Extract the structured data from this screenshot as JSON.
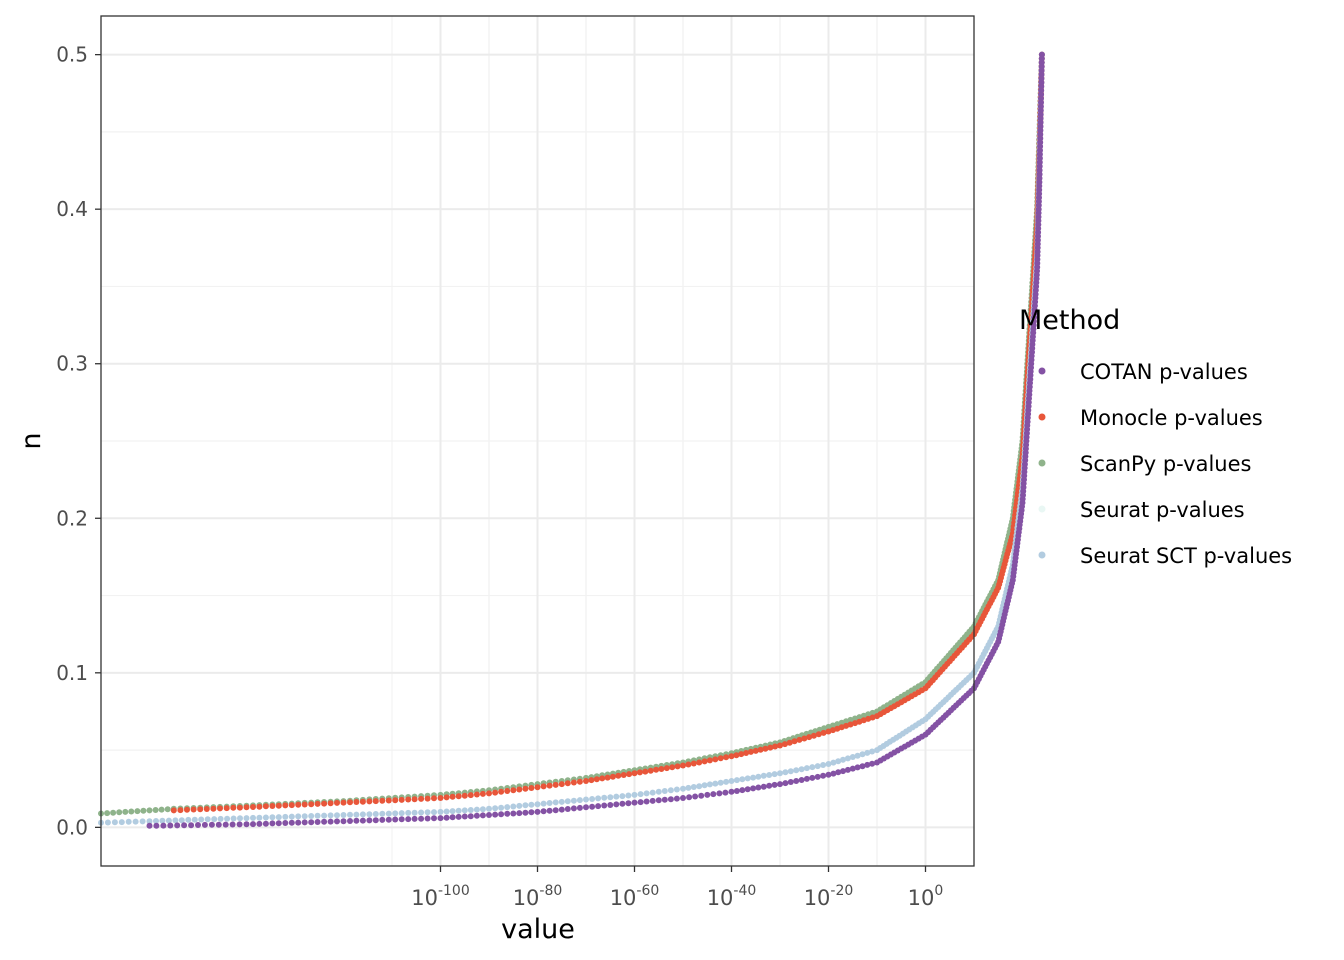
{
  "chart_data": {
    "type": "scatter",
    "xlabel": "value",
    "ylabel": "n",
    "x_scale": "log10",
    "xlim": [
      "1e-170",
      "1e10"
    ],
    "ylim": [
      -0.025,
      0.525
    ],
    "y_ticks": [
      "0.0",
      "0.1",
      "0.2",
      "0.3",
      "0.4",
      "0.5"
    ],
    "x_ticks": [
      {
        "exponent": -100,
        "base": "10",
        "power": "-100"
      },
      {
        "exponent": -80,
        "base": "10",
        "power": "-80"
      },
      {
        "exponent": -60,
        "base": "10",
        "power": "-60"
      },
      {
        "exponent": -40,
        "base": "10",
        "power": "-40"
      },
      {
        "exponent": -20,
        "base": "10",
        "power": "-20"
      },
      {
        "exponent": 0,
        "base": "10",
        "power": "0"
      }
    ],
    "grid": true,
    "legend": {
      "title": "Method",
      "position": "right",
      "entries": [
        {
          "name": "COTAN p-values",
          "color": "#8452a4"
        },
        {
          "name": "Monocle p-values",
          "color": "#e8563a"
        },
        {
          "name": "ScanPy p-values",
          "color": "#8fb38b"
        },
        {
          "name": "Seurat p-values",
          "color": "#e9f7f4"
        },
        {
          "name": "Seurat SCT p-values",
          "color": "#b2cce0"
        }
      ]
    },
    "series": [
      {
        "name": "ScanPy p-values",
        "color": "#8fb38b",
        "points_log10x_y": [
          [
            -170,
            0.009
          ],
          [
            -155,
            0.012
          ],
          [
            -140,
            0.014
          ],
          [
            -120,
            0.017
          ],
          [
            -100,
            0.021
          ],
          [
            -90,
            0.024
          ],
          [
            -80,
            0.028
          ],
          [
            -70,
            0.032
          ],
          [
            -60,
            0.037
          ],
          [
            -50,
            0.042
          ],
          [
            -40,
            0.048
          ],
          [
            -30,
            0.055
          ],
          [
            -20,
            0.065
          ],
          [
            -10,
            0.075
          ],
          [
            0,
            0.094
          ],
          [
            10,
            0.13
          ],
          [
            15,
            0.16
          ],
          [
            18,
            0.2
          ],
          [
            20,
            0.25
          ],
          [
            21,
            0.3
          ],
          [
            22,
            0.35
          ],
          [
            23,
            0.4
          ],
          [
            23.5,
            0.45
          ],
          [
            24,
            0.5
          ]
        ]
      },
      {
        "name": "Monocle p-values",
        "color": "#e8563a",
        "points_log10x_y": [
          [
            -155,
            0.011
          ],
          [
            -140,
            0.013
          ],
          [
            -120,
            0.016
          ],
          [
            -100,
            0.019
          ],
          [
            -90,
            0.022
          ],
          [
            -80,
            0.026
          ],
          [
            -70,
            0.03
          ],
          [
            -60,
            0.035
          ],
          [
            -50,
            0.04
          ],
          [
            -40,
            0.046
          ],
          [
            -30,
            0.053
          ],
          [
            -20,
            0.062
          ],
          [
            -10,
            0.072
          ],
          [
            0,
            0.09
          ],
          [
            10,
            0.125
          ],
          [
            15,
            0.155
          ],
          [
            18,
            0.19
          ],
          [
            20,
            0.24
          ],
          [
            21,
            0.29
          ],
          [
            22,
            0.34
          ],
          [
            23,
            0.39
          ],
          [
            23.5,
            0.44
          ],
          [
            24,
            0.5
          ]
        ]
      },
      {
        "name": "Seurat SCT p-values",
        "color": "#b2cce0",
        "points_log10x_y": [
          [
            -170,
            0.003
          ],
          [
            -160,
            0.004
          ],
          [
            -140,
            0.006
          ],
          [
            -120,
            0.008
          ],
          [
            -100,
            0.01
          ],
          [
            -90,
            0.012
          ],
          [
            -80,
            0.015
          ],
          [
            -70,
            0.018
          ],
          [
            -60,
            0.021
          ],
          [
            -50,
            0.025
          ],
          [
            -40,
            0.03
          ],
          [
            -30,
            0.035
          ],
          [
            -20,
            0.041
          ],
          [
            -10,
            0.05
          ],
          [
            0,
            0.07
          ],
          [
            10,
            0.1
          ],
          [
            15,
            0.13
          ],
          [
            18,
            0.17
          ],
          [
            20,
            0.22
          ],
          [
            21,
            0.27
          ],
          [
            22,
            0.32
          ],
          [
            23,
            0.37
          ],
          [
            23.5,
            0.43
          ],
          [
            24,
            0.5
          ]
        ]
      },
      {
        "name": "COTAN p-values",
        "color": "#8452a4",
        "points_log10x_y": [
          [
            -160,
            0.001
          ],
          [
            -140,
            0.002
          ],
          [
            -120,
            0.004
          ],
          [
            -100,
            0.006
          ],
          [
            -90,
            0.008
          ],
          [
            -80,
            0.01
          ],
          [
            -70,
            0.013
          ],
          [
            -60,
            0.016
          ],
          [
            -50,
            0.019
          ],
          [
            -40,
            0.023
          ],
          [
            -30,
            0.028
          ],
          [
            -20,
            0.034
          ],
          [
            -10,
            0.042
          ],
          [
            0,
            0.06
          ],
          [
            10,
            0.09
          ],
          [
            15,
            0.12
          ],
          [
            18,
            0.16
          ],
          [
            20,
            0.21
          ],
          [
            21,
            0.26
          ],
          [
            22,
            0.31
          ],
          [
            23,
            0.36
          ],
          [
            23.5,
            0.42
          ],
          [
            24,
            0.5
          ]
        ]
      }
    ]
  }
}
